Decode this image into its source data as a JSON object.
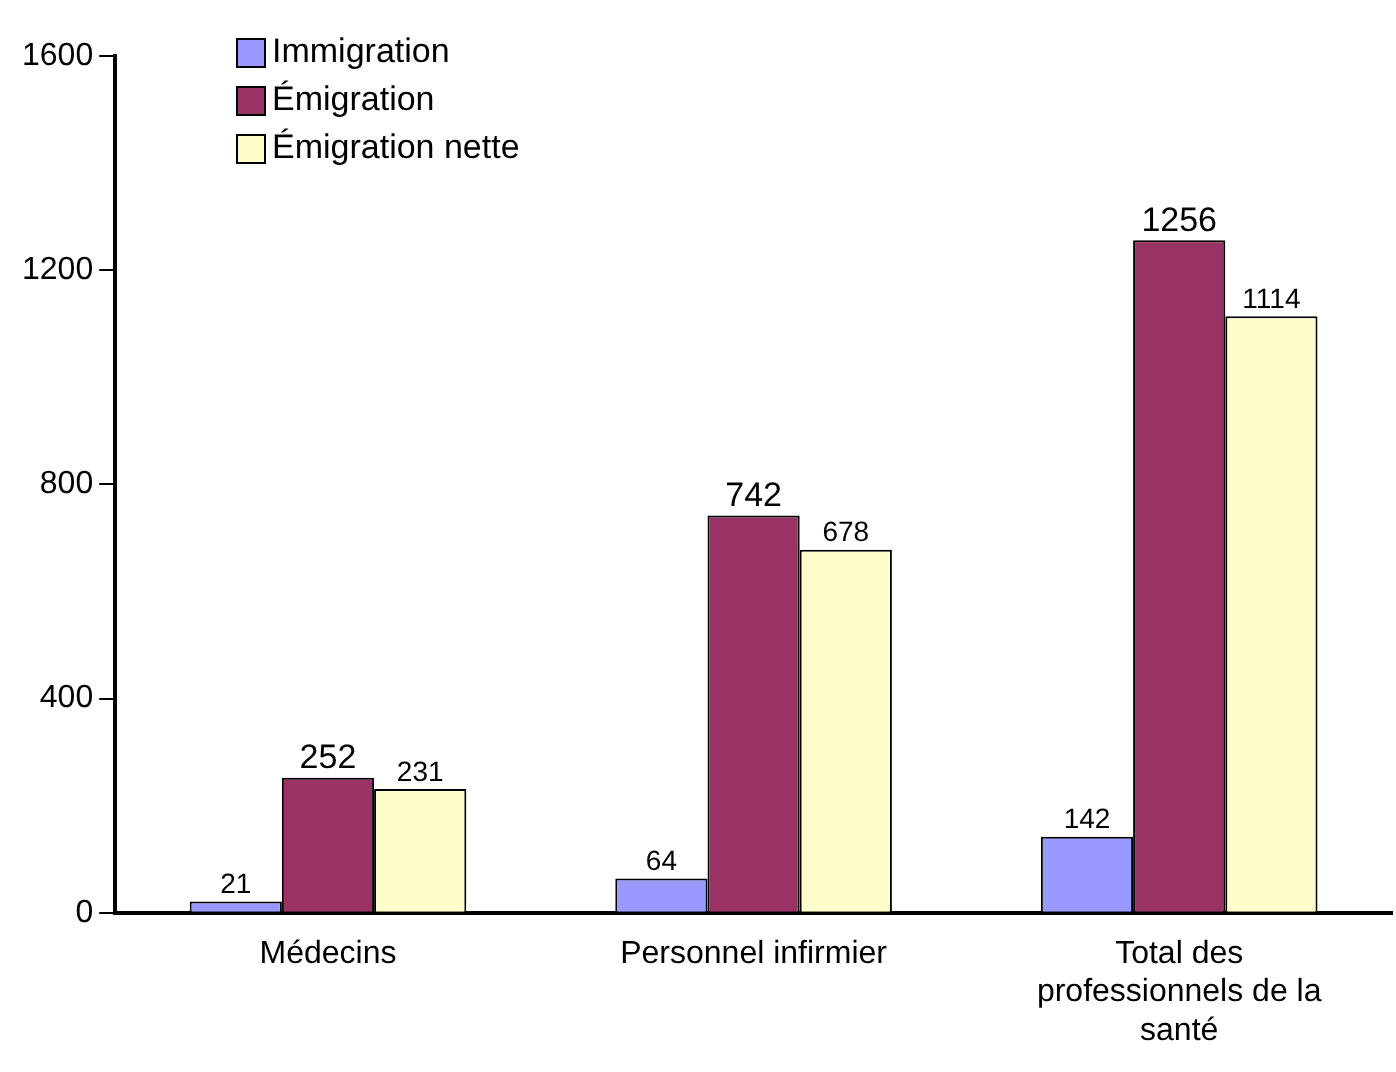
{
  "chart_data": {
    "type": "bar",
    "categories": [
      "Médecins",
      "Personnel infirmier",
      "Total des professionnels de la santé"
    ],
    "series": [
      {
        "name": "Immigration",
        "color": "#9999ff",
        "values": [
          21,
          64,
          142
        ]
      },
      {
        "name": "Émigration",
        "color": "#993366",
        "values": [
          252,
          742,
          1256
        ]
      },
      {
        "name": "Émigration nette",
        "color": "#ffffcc",
        "values": [
          231,
          678,
          1114
        ]
      }
    ],
    "ylim": [
      0,
      1600
    ],
    "yticks": [
      0,
      400,
      800,
      1200,
      1600
    ],
    "grid": false,
    "legend": "top left",
    "data_labels": true
  }
}
